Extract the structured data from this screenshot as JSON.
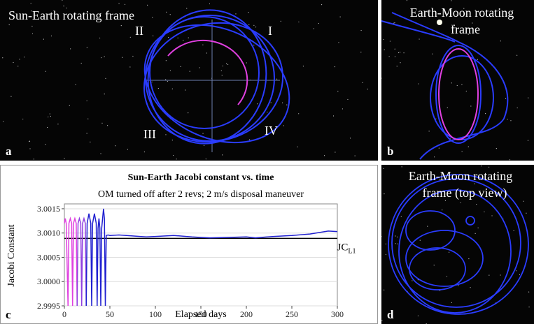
{
  "panels": {
    "a": {
      "letter": "a",
      "title": "Sun-Earth rotating frame",
      "quadrants": [
        "I",
        "II",
        "III",
        "IV"
      ]
    },
    "b": {
      "letter": "b",
      "title_lines": [
        "Earth-Moon rotating",
        "frame"
      ]
    },
    "d": {
      "letter": "d",
      "title_lines": [
        "Earth-Moon rotating",
        "frame (top view)"
      ]
    },
    "c": {
      "letter": "c"
    }
  },
  "chart_data": {
    "type": "line",
    "title": "Sun-Earth Jacobi constant vs. time",
    "subtitle": "OM turned off after 2 revs; 2 m/s disposal maneuver",
    "x_label": "Elapsed days",
    "y_label": "Jacobi Constant",
    "xlim": [
      0,
      300
    ],
    "xticks": [
      0,
      50,
      100,
      150,
      200,
      250,
      300
    ],
    "ylim": [
      2.9995,
      3.0016
    ],
    "yticks": [
      2.9995,
      {
        "value": 3.0,
        "label": "3.0000"
      },
      3.0005,
      {
        "value": 3.001,
        "label": "3.0010"
      },
      3.0015
    ],
    "reference": {
      "value": 3.00089,
      "label": "JC",
      "subscript": "L1",
      "color": "#000000"
    },
    "series": [
      {
        "color": "#e040e0",
        "x": [
          0,
          1,
          2,
          4,
          5,
          6.5,
          8,
          9,
          10,
          11.5,
          13,
          14
        ],
        "values": [
          3.0012,
          3.0013,
          3.0012,
          2.9995,
          3.0012,
          3.0013,
          3.0012,
          2.9995,
          3.0012,
          3.0013,
          3.0012,
          2.9995
        ]
      },
      {
        "color": "#9040e0",
        "x": [
          14,
          15,
          16.5,
          18,
          19,
          20,
          21.5,
          23,
          24
        ],
        "values": [
          2.9995,
          3.0012,
          3.0013,
          3.0012,
          2.9995,
          3.0012,
          3.0013,
          3.0012,
          2.9995
        ]
      },
      {
        "color": "#2020d0",
        "x": [
          24,
          25,
          27,
          29,
          30,
          31,
          33,
          35,
          36,
          37,
          38,
          39,
          40,
          41,
          43,
          44,
          45,
          46,
          48,
          50,
          60,
          75,
          90,
          100,
          120,
          140,
          150,
          160,
          180,
          200,
          210,
          230,
          250,
          270,
          290,
          300
        ],
        "values": [
          2.9995,
          3.0012,
          3.0014,
          3.0012,
          2.9995,
          3.0012,
          3.0014,
          3.0012,
          2.9995,
          3.0011,
          3.0013,
          3.0011,
          2.9995,
          3.0011,
          3.0015,
          3.0013,
          2.9995,
          3.00095,
          3.00096,
          3.00095,
          3.00096,
          3.00094,
          3.00092,
          3.00093,
          3.00095,
          3.00092,
          3.00091,
          3.0009,
          3.00091,
          3.00092,
          3.0009,
          3.00093,
          3.00095,
          3.00098,
          3.00104,
          3.00103
        ]
      }
    ]
  }
}
